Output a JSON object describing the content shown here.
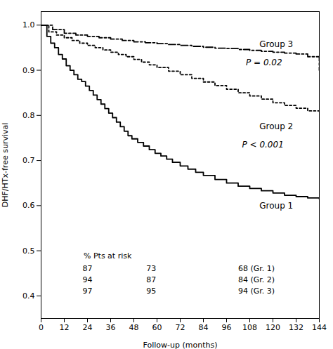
{
  "chart_data": {
    "type": "step",
    "xlabel": "Follow-up (months)",
    "ylabel": "DHF/HTx-free survival",
    "xlim": [
      0,
      144
    ],
    "ylim": [
      0.35,
      1.03
    ],
    "xticks": [
      0,
      12,
      24,
      36,
      48,
      60,
      72,
      84,
      96,
      108,
      120,
      132,
      144
    ],
    "yticks": [
      0.4,
      0.5,
      0.6,
      0.7,
      0.8,
      0.9,
      {
        "value": 1.0,
        "label": "1.0"
      }
    ],
    "series": [
      {
        "color": "black",
        "line_style": "solid",
        "x": [
          0,
          3,
          5,
          7,
          9,
          11,
          13,
          15,
          17,
          19,
          21,
          23,
          25,
          27,
          29,
          31,
          33,
          35,
          37,
          39,
          41,
          43,
          45,
          47,
          50,
          53,
          56,
          59,
          62,
          65,
          68,
          72,
          76,
          80,
          84,
          90,
          96,
          102,
          108,
          114,
          120,
          126,
          132,
          138,
          144
        ],
        "values": [
          1.0,
          0.975,
          0.96,
          0.95,
          0.935,
          0.925,
          0.91,
          0.9,
          0.89,
          0.88,
          0.875,
          0.865,
          0.855,
          0.845,
          0.835,
          0.825,
          0.815,
          0.805,
          0.795,
          0.785,
          0.775,
          0.765,
          0.755,
          0.748,
          0.74,
          0.732,
          0.724,
          0.716,
          0.71,
          0.703,
          0.696,
          0.688,
          0.681,
          0.674,
          0.667,
          0.658,
          0.65,
          0.643,
          0.638,
          0.633,
          0.628,
          0.623,
          0.62,
          0.617,
          0.615
        ]
      },
      {
        "color": "black",
        "line_style": "dotted",
        "x": [
          0,
          4,
          8,
          12,
          16,
          20,
          24,
          28,
          32,
          36,
          40,
          44,
          48,
          52,
          56,
          60,
          66,
          72,
          78,
          84,
          90,
          96,
          102,
          108,
          114,
          120,
          126,
          132,
          138,
          144
        ],
        "values": [
          1.0,
          0.985,
          0.978,
          0.972,
          0.966,
          0.96,
          0.955,
          0.95,
          0.945,
          0.94,
          0.935,
          0.93,
          0.924,
          0.918,
          0.912,
          0.906,
          0.898,
          0.89,
          0.882,
          0.874,
          0.866,
          0.858,
          0.85,
          0.843,
          0.836,
          0.828,
          0.822,
          0.816,
          0.81,
          0.804
        ]
      },
      {
        "color": "black",
        "line_style": "dashdot",
        "x": [
          0,
          6,
          12,
          18,
          24,
          30,
          36,
          42,
          48,
          54,
          60,
          66,
          72,
          78,
          84,
          90,
          96,
          102,
          108,
          114,
          120,
          126,
          132,
          138,
          144
        ],
        "values": [
          1.0,
          0.99,
          0.982,
          0.978,
          0.975,
          0.972,
          0.969,
          0.966,
          0.963,
          0.961,
          0.959,
          0.957,
          0.955,
          0.953,
          0.951,
          0.949,
          0.948,
          0.946,
          0.944,
          0.942,
          0.94,
          0.938,
          0.936,
          0.93,
          0.9
        ]
      }
    ],
    "annotations": [
      {
        "text": "Group 3",
        "x": 113,
        "y": 0.958
      },
      {
        "text": "P = 0.02",
        "x": 106,
        "y": 0.917,
        "italic": true
      },
      {
        "text": "Group 2",
        "x": 113,
        "y": 0.775
      },
      {
        "text": "P < 0.001",
        "x": 104,
        "y": 0.735,
        "italic": true
      },
      {
        "text": "Group 1",
        "x": 113,
        "y": 0.6
      }
    ],
    "risk_table": {
      "header": "% Pts at risk",
      "header_x": 22,
      "header_y": 0.488,
      "col_x": [
        24,
        57,
        102
      ],
      "row_y": [
        0.46,
        0.435,
        0.41
      ],
      "rows": [
        [
          "87",
          "73",
          "68 (Gr. 1)"
        ],
        [
          "94",
          "87",
          "84 (Gr. 2)"
        ],
        [
          "97",
          "95",
          "94 (Gr. 3)"
        ]
      ]
    }
  }
}
